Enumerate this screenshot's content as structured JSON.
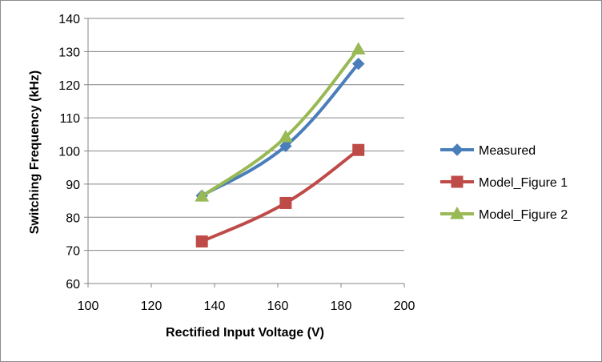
{
  "chart_data": {
    "type": "line",
    "title": "",
    "xlabel": "Rectified Input Voltage  (V)",
    "ylabel": "Switching Frequency (kHz)",
    "xlim": [
      100,
      200
    ],
    "ylim": [
      60,
      140
    ],
    "xticks": [
      100,
      120,
      140,
      160,
      180,
      200
    ],
    "yticks": [
      60,
      70,
      80,
      90,
      100,
      110,
      120,
      130,
      140
    ],
    "grid": "horizontal",
    "legend_position": "right",
    "series": [
      {
        "name": "Measured",
        "color": "#4a7ebb",
        "marker": "diamond",
        "x": [
          136,
          162.5,
          185.5
        ],
        "y": [
          86.5,
          101.5,
          126.3
        ]
      },
      {
        "name": "Model_Figure 1",
        "color": "#be4b48",
        "marker": "square",
        "x": [
          136,
          162.5,
          185.5
        ],
        "y": [
          72.7,
          84.3,
          100.3
        ]
      },
      {
        "name": "Model_Figure 2",
        "color": "#98b954",
        "marker": "triangle",
        "x": [
          136,
          162.5,
          185.5
        ],
        "y": [
          86.3,
          104.2,
          130.7
        ]
      }
    ]
  }
}
